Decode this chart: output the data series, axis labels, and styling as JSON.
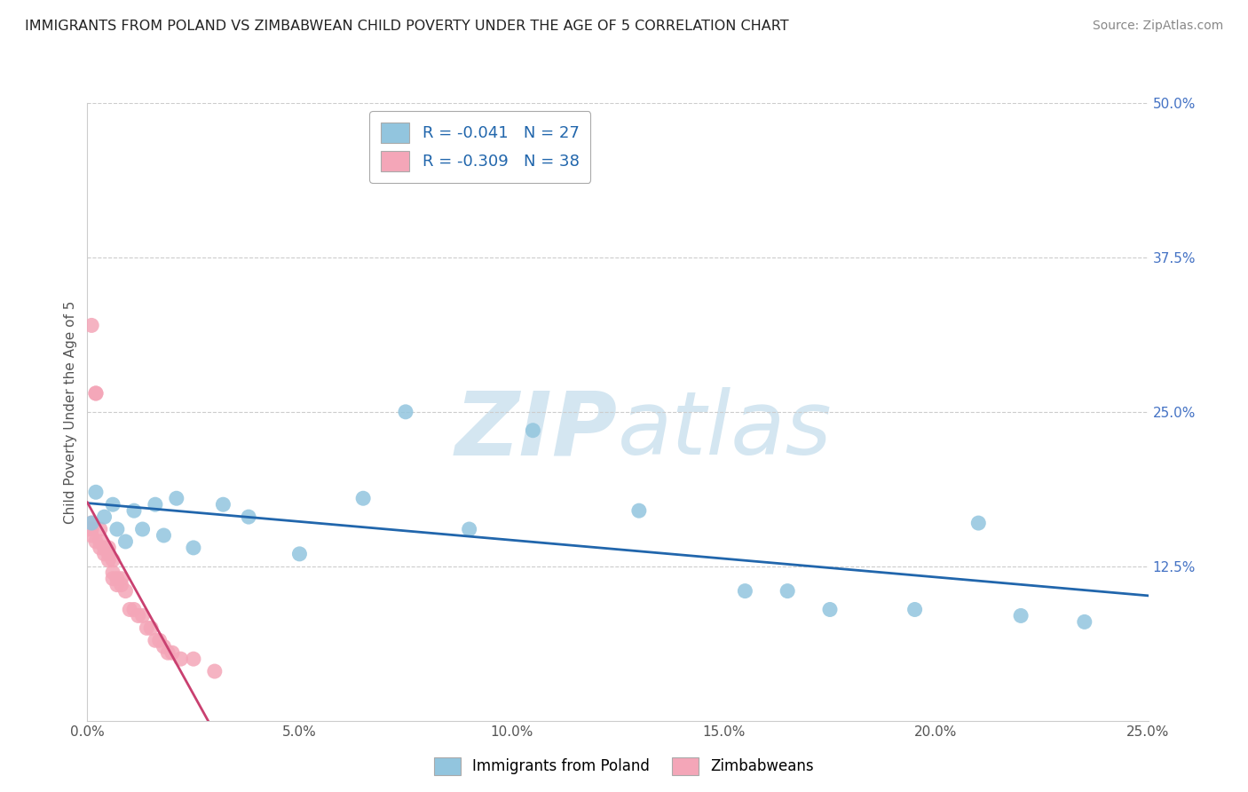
{
  "title": "IMMIGRANTS FROM POLAND VS ZIMBABWEAN CHILD POVERTY UNDER THE AGE OF 5 CORRELATION CHART",
  "source": "Source: ZipAtlas.com",
  "ylabel": "Child Poverty Under the Age of 5",
  "legend_labels": [
    "Immigrants from Poland",
    "Zimbabweans"
  ],
  "legend_r": [
    -0.041,
    -0.309
  ],
  "legend_n": [
    27,
    38
  ],
  "xlim": [
    0.0,
    0.25
  ],
  "ylim": [
    0.0,
    0.5
  ],
  "xticks": [
    0.0,
    0.05,
    0.1,
    0.15,
    0.2,
    0.25
  ],
  "xtick_labels": [
    "0.0%",
    "5.0%",
    "10.0%",
    "15.0%",
    "20.0%",
    "25.0%"
  ],
  "yticks_right": [
    0.125,
    0.25,
    0.375,
    0.5
  ],
  "ytick_labels_right": [
    "12.5%",
    "25.0%",
    "37.5%",
    "50.0%"
  ],
  "grid_color": "#cccccc",
  "blue_color": "#92c5de",
  "pink_color": "#f4a6b8",
  "blue_line_color": "#2166ac",
  "pink_line_color": "#c94070",
  "watermark_color": "#d4e6f1",
  "poland_x": [
    0.001,
    0.002,
    0.004,
    0.006,
    0.007,
    0.009,
    0.011,
    0.013,
    0.016,
    0.018,
    0.021,
    0.025,
    0.032,
    0.038,
    0.05,
    0.065,
    0.075,
    0.09,
    0.105,
    0.13,
    0.155,
    0.165,
    0.175,
    0.195,
    0.21,
    0.22,
    0.235
  ],
  "poland_y": [
    0.16,
    0.185,
    0.165,
    0.175,
    0.155,
    0.145,
    0.17,
    0.155,
    0.175,
    0.15,
    0.18,
    0.14,
    0.175,
    0.165,
    0.135,
    0.18,
    0.25,
    0.155,
    0.235,
    0.17,
    0.105,
    0.105,
    0.09,
    0.09,
    0.16,
    0.085,
    0.08
  ],
  "zimbab_x": [
    0.0,
    0.001,
    0.001,
    0.001,
    0.001,
    0.002,
    0.002,
    0.002,
    0.003,
    0.003,
    0.003,
    0.004,
    0.004,
    0.005,
    0.005,
    0.005,
    0.006,
    0.006,
    0.006,
    0.007,
    0.007,
    0.008,
    0.008,
    0.009,
    0.01,
    0.011,
    0.012,
    0.013,
    0.014,
    0.015,
    0.016,
    0.017,
    0.018,
    0.019,
    0.02,
    0.022,
    0.025,
    0.03
  ],
  "zimbab_y": [
    0.155,
    0.32,
    0.16,
    0.155,
    0.15,
    0.265,
    0.265,
    0.145,
    0.155,
    0.145,
    0.14,
    0.14,
    0.135,
    0.14,
    0.135,
    0.13,
    0.13,
    0.12,
    0.115,
    0.115,
    0.11,
    0.115,
    0.11,
    0.105,
    0.09,
    0.09,
    0.085,
    0.085,
    0.075,
    0.075,
    0.065,
    0.065,
    0.06,
    0.055,
    0.055,
    0.05,
    0.05,
    0.04
  ]
}
